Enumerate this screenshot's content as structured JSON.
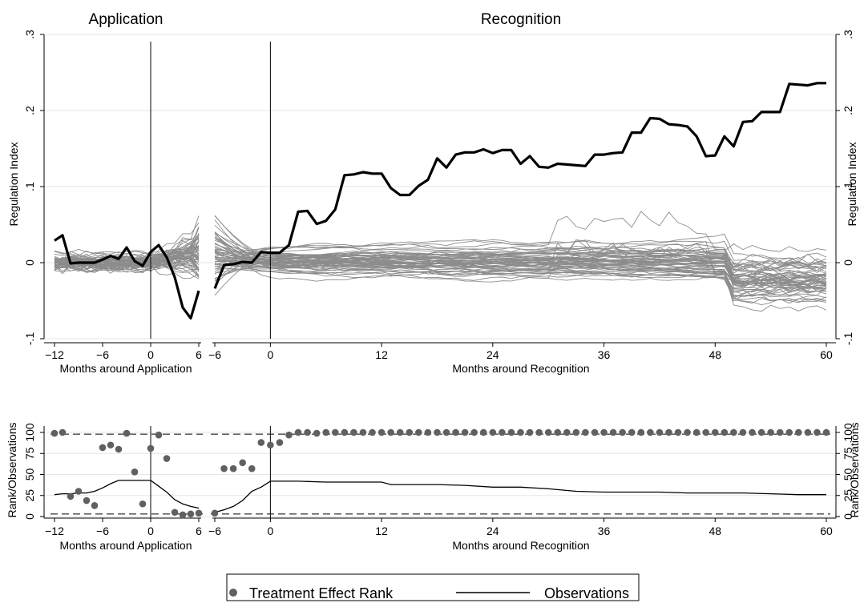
{
  "chart_data": [
    {
      "type": "line",
      "panel": "top",
      "titles": [
        "Application",
        "Recognition"
      ],
      "xlabels": [
        "Months around Application",
        "Months around Recognition"
      ],
      "ylabel_left": "Regulation Index",
      "ylabel_right": "Regulation Index",
      "ylim": [
        -0.1,
        0.3
      ],
      "yticks": [
        -0.1,
        0,
        0.1,
        0.2,
        0.3
      ],
      "ytick_labels": [
        "-.1",
        "0",
        ".1",
        ".2",
        ".3"
      ],
      "application_xlim": [
        -12,
        6
      ],
      "application_xticks": [
        -12,
        -6,
        0,
        6
      ],
      "application_xtick_labels": [
        "−12",
        "−6",
        "0",
        "6"
      ],
      "recognition_xlim": [
        -6,
        60
      ],
      "recognition_xticks": [
        -6,
        0,
        12,
        24,
        36,
        48,
        60
      ],
      "recognition_xtick_labels": [
        "−6",
        "0",
        "12",
        "24",
        "36",
        "48",
        "60"
      ],
      "grid": true,
      "treated_series": {
        "color": "#000000",
        "application": {
          "x": [
            -12,
            -11,
            -10,
            -9,
            -8,
            -7,
            -6,
            -5,
            -4,
            -3,
            -2,
            -1,
            0,
            1,
            2,
            3,
            4,
            5,
            6
          ],
          "y": [
            0.029,
            0.036,
            -0.001,
            0.0,
            0.0,
            0.0,
            0.004,
            0.009,
            0.005,
            0.02,
            0.002,
            -0.004,
            0.014,
            0.023,
            0.007,
            -0.019,
            -0.059,
            -0.073,
            -0.037
          ]
        },
        "recognition": {
          "x": [
            -6,
            -5,
            -4,
            -3,
            -2,
            -1,
            0,
            1,
            2,
            3,
            4,
            5,
            6,
            7,
            8,
            9,
            10,
            11,
            12,
            13,
            14,
            15,
            16,
            17,
            18,
            19,
            20,
            21,
            22,
            23,
            24,
            25,
            26,
            27,
            28,
            29,
            30,
            31,
            32,
            33,
            34,
            35,
            36,
            37,
            38,
            39,
            40,
            41,
            42,
            43,
            44,
            45,
            46,
            47,
            48,
            49,
            50,
            51,
            52,
            53,
            54,
            55,
            56,
            57,
            58,
            59,
            60
          ],
          "y": [
            -0.034,
            -0.003,
            -0.002,
            0.001,
            0.0,
            0.014,
            0.013,
            0.013,
            0.023,
            0.067,
            0.068,
            0.051,
            0.055,
            0.07,
            0.115,
            0.116,
            0.119,
            0.117,
            0.117,
            0.098,
            0.089,
            0.089,
            0.101,
            0.109,
            0.137,
            0.125,
            0.142,
            0.145,
            0.145,
            0.149,
            0.144,
            0.148,
            0.148,
            0.13,
            0.14,
            0.126,
            0.125,
            0.13,
            0.129,
            0.128,
            0.127,
            0.142,
            0.142,
            0.144,
            0.145,
            0.171,
            0.171,
            0.19,
            0.189,
            0.182,
            0.181,
            0.179,
            0.166,
            0.14,
            0.141,
            0.166,
            0.153,
            0.185,
            0.186,
            0.198,
            0.198,
            0.198,
            0.235,
            0.234,
            0.233,
            0.236,
            0.236
          ]
        }
      },
      "placebo_series": {
        "color": "#8c8c8c",
        "count": 60,
        "description_note": ""
      }
    },
    {
      "type": "scatter+line",
      "panel": "bottom",
      "xlabels": [
        "Months around Application",
        "Months around Recognition"
      ],
      "ylabel_left": "Rank/Observations",
      "ylabel_right": "Rank/Observations",
      "ylim": [
        0,
        100
      ],
      "yticks": [
        0,
        25,
        50,
        75,
        100
      ],
      "ytick_labels": [
        "0",
        "25",
        "50",
        "75",
        "100"
      ],
      "application_xticks": [
        -12,
        -6,
        0,
        6
      ],
      "application_xtick_labels": [
        "−12",
        "−6",
        "0",
        "6"
      ],
      "recognition_xticks": [
        -6,
        0,
        12,
        24,
        36,
        48,
        60
      ],
      "recognition_xtick_labels": [
        "−6",
        "0",
        "12",
        "24",
        "36",
        "48",
        "60"
      ],
      "reference_lines": [
        3,
        98
      ],
      "rank": {
        "name": "Treatment Effect Rank",
        "color": "#606060",
        "application": {
          "x": [
            -12,
            -11,
            -10,
            -9,
            -8,
            -7,
            -6,
            -5,
            -4,
            -3,
            -2,
            -1,
            0,
            1,
            2,
            3,
            4,
            5,
            6
          ],
          "y": [
            99,
            100,
            24,
            30,
            19,
            13,
            82,
            85,
            80,
            99,
            53,
            15,
            81,
            97,
            69,
            5,
            2,
            3,
            4
          ]
        },
        "recognition": {
          "x": [
            -6,
            -5,
            -4,
            -3,
            -2,
            -1,
            0,
            1,
            2,
            3,
            4,
            5,
            6,
            7,
            8,
            9,
            10,
            11,
            12,
            13,
            14,
            15,
            16,
            17,
            18,
            19,
            20,
            21,
            22,
            23,
            24,
            25,
            26,
            27,
            28,
            29,
            30,
            31,
            32,
            33,
            34,
            35,
            36,
            37,
            38,
            39,
            40,
            41,
            42,
            43,
            44,
            45,
            46,
            47,
            48,
            49,
            50,
            51,
            52,
            53,
            54,
            55,
            56,
            57,
            58,
            59,
            60
          ],
          "y": [
            4,
            57,
            57,
            64,
            57,
            88,
            85,
            88,
            97,
            100,
            100,
            99,
            100,
            100,
            100,
            100,
            100,
            100,
            100,
            100,
            100,
            100,
            100,
            100,
            100,
            100,
            100,
            100,
            100,
            100,
            100,
            100,
            100,
            100,
            100,
            100,
            100,
            100,
            100,
            100,
            100,
            100,
            100,
            100,
            100,
            100,
            100,
            100,
            100,
            100,
            100,
            100,
            100,
            100,
            100,
            100,
            100,
            100,
            100,
            100,
            100,
            100,
            100,
            100,
            100,
            100,
            100
          ]
        }
      },
      "observations": {
        "name": "Observations",
        "color": "#000000",
        "application": {
          "x": [
            -12,
            -11,
            -10,
            -9,
            -8,
            -7,
            -6,
            -5,
            -4,
            -3,
            -2,
            -1,
            0,
            1,
            2,
            3,
            4,
            5,
            6
          ],
          "y": [
            26,
            27,
            27,
            28,
            28,
            30,
            34,
            39,
            43,
            43,
            43,
            43,
            43,
            36,
            29,
            20,
            15,
            12,
            10
          ]
        },
        "recognition": {
          "x": [
            -6,
            -5,
            -4,
            -3,
            -2,
            -1,
            0,
            3,
            6,
            9,
            12,
            13,
            18,
            21,
            24,
            27,
            30,
            33,
            36,
            39,
            42,
            45,
            48,
            51,
            54,
            57,
            60
          ],
          "y": [
            5,
            8,
            12,
            19,
            30,
            35,
            42,
            42,
            41,
            41,
            41,
            38,
            38,
            37,
            35,
            35,
            33,
            30,
            29,
            29,
            29,
            28,
            28,
            28,
            27,
            26,
            26
          ]
        }
      }
    }
  ],
  "legend": {
    "items": [
      {
        "label": "Treatment Effect Rank",
        "marker": "dot",
        "color": "#606060"
      },
      {
        "label": "Observations",
        "marker": "line",
        "color": "#000000"
      }
    ],
    "placement": "bottom-center"
  }
}
